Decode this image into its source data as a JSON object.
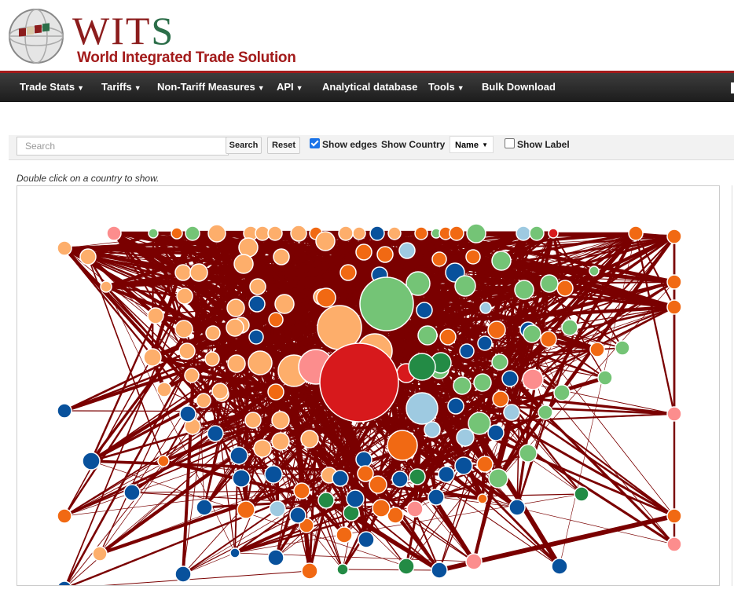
{
  "logo": {
    "wits_main": "WIT",
    "wits_s": "S",
    "subtitle": "World Integrated Trade Solution"
  },
  "nav": [
    {
      "label": "Trade Stats",
      "has_caret": true
    },
    {
      "label": "Tariffs",
      "has_caret": true
    },
    {
      "label": "Non-Tariff Measures",
      "has_caret": true
    },
    {
      "label": "API",
      "has_caret": true
    },
    {
      "label": "Analytical database",
      "has_caret": false
    },
    {
      "label": "Tools",
      "has_caret": true
    },
    {
      "label": "Bulk Download",
      "has_caret": false
    }
  ],
  "toolbar": {
    "search_placeholder": "Search",
    "search_button": "Search",
    "reset_button": "Reset",
    "show_edges_label": "Show edges",
    "show_edges_checked": true,
    "show_country_label": "Show Country",
    "show_country_value": "Name",
    "show_label_label": "Show Label",
    "show_label_checked": false
  },
  "hint": "Double click on a country to show.",
  "graph": {
    "edge_color": "#7a0000",
    "node_colors": [
      "#fdae6b",
      "#f16913",
      "#08519c",
      "#74c476",
      "#238b45",
      "#fc8d8d",
      "#d7191c",
      "#9ecae1"
    ]
  }
}
